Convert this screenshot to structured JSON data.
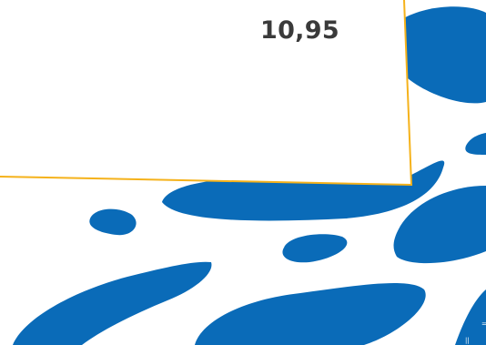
{
  "product": {
    "price": "10,95"
  },
  "colors": {
    "background": "#ffffff",
    "blob": "#0a6bb8",
    "card_border": "#f5b21b",
    "price_text": "#3a3a3a"
  },
  "decor": {
    "corner_mark_a": "=",
    "corner_mark_b": "||"
  }
}
